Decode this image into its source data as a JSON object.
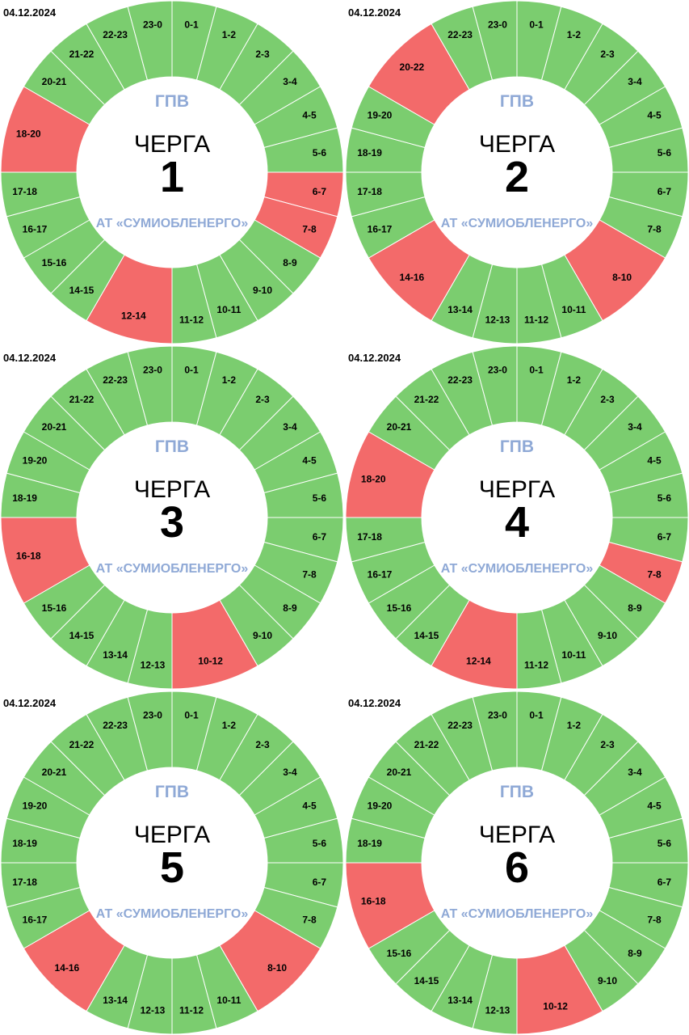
{
  "colors": {
    "on": "#7bcd6f",
    "off": "#f36a6a",
    "line": "#ffffff",
    "accent": "#8fa9d6"
  },
  "panels": [
    {
      "date": "04.12.2024",
      "title": "ГПВ",
      "heading": "ЧЕРГА",
      "number": "1",
      "company": "АТ «СУМИОБЛЕНЕРГО»",
      "segments": [
        {
          "label": "0-1",
          "span": 1,
          "off": false
        },
        {
          "label": "1-2",
          "span": 1,
          "off": false
        },
        {
          "label": "2-3",
          "span": 1,
          "off": false
        },
        {
          "label": "3-4",
          "span": 1,
          "off": false
        },
        {
          "label": "4-5",
          "span": 1,
          "off": false
        },
        {
          "label": "5-6",
          "span": 1,
          "off": false
        },
        {
          "label": "6-7",
          "span": 1,
          "off": true
        },
        {
          "label": "7-8",
          "span": 1,
          "off": true
        },
        {
          "label": "8-9",
          "span": 1,
          "off": false
        },
        {
          "label": "9-10",
          "span": 1,
          "off": false
        },
        {
          "label": "10-11",
          "span": 1,
          "off": false
        },
        {
          "label": "11-12",
          "span": 1,
          "off": false
        },
        {
          "label": "12-14",
          "span": 2,
          "off": true
        },
        {
          "label": "14-15",
          "span": 1,
          "off": false
        },
        {
          "label": "15-16",
          "span": 1,
          "off": false
        },
        {
          "label": "16-17",
          "span": 1,
          "off": false
        },
        {
          "label": "17-18",
          "span": 1,
          "off": false
        },
        {
          "label": "18-20",
          "span": 2,
          "off": true
        },
        {
          "label": "20-21",
          "span": 1,
          "off": false
        },
        {
          "label": "21-22",
          "span": 1,
          "off": false
        },
        {
          "label": "22-23",
          "span": 1,
          "off": false
        },
        {
          "label": "23-0",
          "span": 1,
          "off": false
        }
      ]
    },
    {
      "date": "04.12.2024",
      "title": "ГПВ",
      "heading": "ЧЕРГА",
      "number": "2",
      "company": "АТ «СУМИОБЛЕНЕРГО»",
      "segments": [
        {
          "label": "0-1",
          "span": 1,
          "off": false
        },
        {
          "label": "1-2",
          "span": 1,
          "off": false
        },
        {
          "label": "2-3",
          "span": 1,
          "off": false
        },
        {
          "label": "3-4",
          "span": 1,
          "off": false
        },
        {
          "label": "4-5",
          "span": 1,
          "off": false
        },
        {
          "label": "5-6",
          "span": 1,
          "off": false
        },
        {
          "label": "6-7",
          "span": 1,
          "off": false
        },
        {
          "label": "7-8",
          "span": 1,
          "off": false
        },
        {
          "label": "8-10",
          "span": 2,
          "off": true
        },
        {
          "label": "10-11",
          "span": 1,
          "off": false
        },
        {
          "label": "11-12",
          "span": 1,
          "off": false
        },
        {
          "label": "12-13",
          "span": 1,
          "off": false
        },
        {
          "label": "13-14",
          "span": 1,
          "off": false
        },
        {
          "label": "14-16",
          "span": 2,
          "off": true
        },
        {
          "label": "16-17",
          "span": 1,
          "off": false
        },
        {
          "label": "17-18",
          "span": 1,
          "off": false
        },
        {
          "label": "18-19",
          "span": 1,
          "off": false
        },
        {
          "label": "19-20",
          "span": 1,
          "off": false
        },
        {
          "label": "20-22",
          "span": 2,
          "off": true
        },
        {
          "label": "22-23",
          "span": 1,
          "off": false
        },
        {
          "label": "23-0",
          "span": 1,
          "off": false
        }
      ]
    },
    {
      "date": "04.12.2024",
      "title": "ГПВ",
      "heading": "ЧЕРГА",
      "number": "3",
      "company": "АТ «СУМИОБЛЕНЕРГО»",
      "segments": [
        {
          "label": "0-1",
          "span": 1,
          "off": false
        },
        {
          "label": "1-2",
          "span": 1,
          "off": false
        },
        {
          "label": "2-3",
          "span": 1,
          "off": false
        },
        {
          "label": "3-4",
          "span": 1,
          "off": false
        },
        {
          "label": "4-5",
          "span": 1,
          "off": false
        },
        {
          "label": "5-6",
          "span": 1,
          "off": false
        },
        {
          "label": "6-7",
          "span": 1,
          "off": false
        },
        {
          "label": "7-8",
          "span": 1,
          "off": false
        },
        {
          "label": "8-9",
          "span": 1,
          "off": false
        },
        {
          "label": "9-10",
          "span": 1,
          "off": false
        },
        {
          "label": "10-12",
          "span": 2,
          "off": true
        },
        {
          "label": "12-13",
          "span": 1,
          "off": false
        },
        {
          "label": "13-14",
          "span": 1,
          "off": false
        },
        {
          "label": "14-15",
          "span": 1,
          "off": false
        },
        {
          "label": "15-16",
          "span": 1,
          "off": false
        },
        {
          "label": "16-18",
          "span": 2,
          "off": true
        },
        {
          "label": "18-19",
          "span": 1,
          "off": false
        },
        {
          "label": "19-20",
          "span": 1,
          "off": false
        },
        {
          "label": "20-21",
          "span": 1,
          "off": false
        },
        {
          "label": "21-22",
          "span": 1,
          "off": false
        },
        {
          "label": "22-23",
          "span": 1,
          "off": false
        },
        {
          "label": "23-0",
          "span": 1,
          "off": false
        }
      ]
    },
    {
      "date": "04.12.2024",
      "title": "ГПВ",
      "heading": "ЧЕРГА",
      "number": "4",
      "company": "АТ «СУМИОБЛЕНЕРГО»",
      "segments": [
        {
          "label": "0-1",
          "span": 1,
          "off": false
        },
        {
          "label": "1-2",
          "span": 1,
          "off": false
        },
        {
          "label": "2-3",
          "span": 1,
          "off": false
        },
        {
          "label": "3-4",
          "span": 1,
          "off": false
        },
        {
          "label": "4-5",
          "span": 1,
          "off": false
        },
        {
          "label": "5-6",
          "span": 1,
          "off": false
        },
        {
          "label": "6-7",
          "span": 1,
          "off": false
        },
        {
          "label": "7-8",
          "span": 1,
          "off": true
        },
        {
          "label": "8-9",
          "span": 1,
          "off": false
        },
        {
          "label": "9-10",
          "span": 1,
          "off": false
        },
        {
          "label": "10-11",
          "span": 1,
          "off": false
        },
        {
          "label": "11-12",
          "span": 1,
          "off": false
        },
        {
          "label": "12-14",
          "span": 2,
          "off": true
        },
        {
          "label": "14-15",
          "span": 1,
          "off": false
        },
        {
          "label": "15-16",
          "span": 1,
          "off": false
        },
        {
          "label": "16-17",
          "span": 1,
          "off": false
        },
        {
          "label": "17-18",
          "span": 1,
          "off": false
        },
        {
          "label": "18-20",
          "span": 2,
          "off": true
        },
        {
          "label": "20-21",
          "span": 1,
          "off": false
        },
        {
          "label": "21-22",
          "span": 1,
          "off": false
        },
        {
          "label": "22-23",
          "span": 1,
          "off": false
        },
        {
          "label": "23-0",
          "span": 1,
          "off": false
        }
      ]
    },
    {
      "date": "04.12.2024",
      "title": "ГПВ",
      "heading": "ЧЕРГА",
      "number": "5",
      "company": "АТ «СУМИОБЛЕНЕРГО»",
      "segments": [
        {
          "label": "0-1",
          "span": 1,
          "off": false
        },
        {
          "label": "1-2",
          "span": 1,
          "off": false
        },
        {
          "label": "2-3",
          "span": 1,
          "off": false
        },
        {
          "label": "3-4",
          "span": 1,
          "off": false
        },
        {
          "label": "4-5",
          "span": 1,
          "off": false
        },
        {
          "label": "5-6",
          "span": 1,
          "off": false
        },
        {
          "label": "6-7",
          "span": 1,
          "off": false
        },
        {
          "label": "7-8",
          "span": 1,
          "off": false
        },
        {
          "label": "8-10",
          "span": 2,
          "off": true
        },
        {
          "label": "10-11",
          "span": 1,
          "off": false
        },
        {
          "label": "11-12",
          "span": 1,
          "off": false
        },
        {
          "label": "12-13",
          "span": 1,
          "off": false
        },
        {
          "label": "13-14",
          "span": 1,
          "off": false
        },
        {
          "label": "14-16",
          "span": 2,
          "off": true
        },
        {
          "label": "16-17",
          "span": 1,
          "off": false
        },
        {
          "label": "17-18",
          "span": 1,
          "off": false
        },
        {
          "label": "18-19",
          "span": 1,
          "off": false
        },
        {
          "label": "19-20",
          "span": 1,
          "off": false
        },
        {
          "label": "20-21",
          "span": 1,
          "off": false
        },
        {
          "label": "21-22",
          "span": 1,
          "off": false
        },
        {
          "label": "22-23",
          "span": 1,
          "off": false
        },
        {
          "label": "23-0",
          "span": 1,
          "off": false
        }
      ]
    },
    {
      "date": "04.12.2024",
      "title": "ГПВ",
      "heading": "ЧЕРГА",
      "number": "6",
      "company": "АТ «СУМИОБЛЕНЕРГО»",
      "segments": [
        {
          "label": "0-1",
          "span": 1,
          "off": false
        },
        {
          "label": "1-2",
          "span": 1,
          "off": false
        },
        {
          "label": "2-3",
          "span": 1,
          "off": false
        },
        {
          "label": "3-4",
          "span": 1,
          "off": false
        },
        {
          "label": "4-5",
          "span": 1,
          "off": false
        },
        {
          "label": "5-6",
          "span": 1,
          "off": false
        },
        {
          "label": "6-7",
          "span": 1,
          "off": false
        },
        {
          "label": "7-8",
          "span": 1,
          "off": false
        },
        {
          "label": "8-9",
          "span": 1,
          "off": false
        },
        {
          "label": "9-10",
          "span": 1,
          "off": false
        },
        {
          "label": "10-12",
          "span": 2,
          "off": true
        },
        {
          "label": "12-13",
          "span": 1,
          "off": false
        },
        {
          "label": "13-14",
          "span": 1,
          "off": false
        },
        {
          "label": "14-15",
          "span": 1,
          "off": false
        },
        {
          "label": "15-16",
          "span": 1,
          "off": false
        },
        {
          "label": "16-18",
          "span": 2,
          "off": true
        },
        {
          "label": "18-19",
          "span": 1,
          "off": false
        },
        {
          "label": "19-20",
          "span": 1,
          "off": false
        },
        {
          "label": "20-21",
          "span": 1,
          "off": false
        },
        {
          "label": "21-22",
          "span": 1,
          "off": false
        },
        {
          "label": "22-23",
          "span": 1,
          "off": false
        },
        {
          "label": "23-0",
          "span": 1,
          "off": false
        }
      ]
    }
  ]
}
